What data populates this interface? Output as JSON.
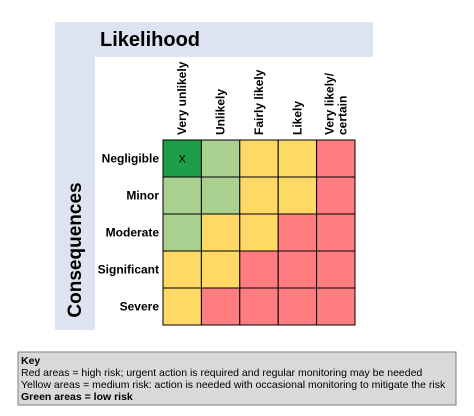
{
  "title": "Likelihood",
  "side_title": "Consequences",
  "matrix": {
    "columns": [
      [
        "Very unlikely"
      ],
      [
        "Unlikely"
      ],
      [
        "Fairly likely"
      ],
      [
        "Likely"
      ],
      [
        "Very likely/",
        "certain"
      ]
    ],
    "rows": [
      "Negligible",
      "Minor",
      "Moderate",
      "Significant",
      "Severe"
    ],
    "marked_cell_label": "X"
  },
  "key": {
    "title": "Key",
    "lines": [
      "Red areas = high risk; urgent action is required and regular monitoring may be needed",
      "Yellow areas = medium risk: action is needed with occasional monitoring to mitigate the risk",
      "Green areas = low risk"
    ]
  }
}
